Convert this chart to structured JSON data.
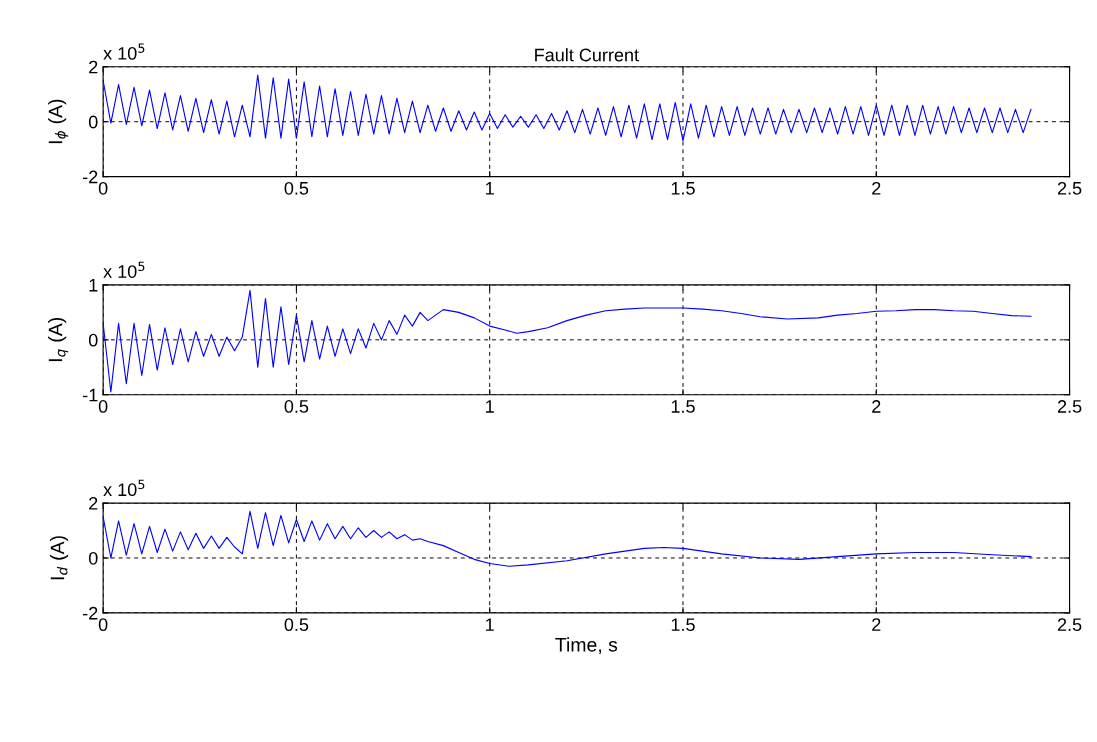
{
  "chart_data": [
    {
      "type": "line",
      "title": "Fault Current",
      "ylabel": "I$_{ϕ}$ (A)",
      "annotations": [
        "x 10$^{5}$"
      ],
      "xlim": [
        0,
        2.5
      ],
      "xticks": [
        0,
        0.5,
        1,
        1.5,
        2,
        2.5
      ],
      "ylim": [
        -2,
        2
      ],
      "yticks": [
        -2,
        0,
        2
      ],
      "grid": true,
      "x": [
        0,
        0.02,
        0.04,
        0.06,
        0.08,
        0.1,
        0.12,
        0.14,
        0.16,
        0.18,
        0.2,
        0.22,
        0.24,
        0.26,
        0.28,
        0.3,
        0.32,
        0.34,
        0.36,
        0.38,
        0.4,
        0.42,
        0.44,
        0.46,
        0.48,
        0.5,
        0.52,
        0.54,
        0.56,
        0.58,
        0.6,
        0.62,
        0.64,
        0.66,
        0.68,
        0.7,
        0.72,
        0.74,
        0.76,
        0.78,
        0.8,
        0.82,
        0.84,
        0.86,
        0.88,
        0.9,
        0.92,
        0.94,
        0.96,
        0.98,
        1.0,
        1.02,
        1.04,
        1.06,
        1.08,
        1.1,
        1.12,
        1.14,
        1.16,
        1.18,
        1.2,
        1.22,
        1.24,
        1.26,
        1.28,
        1.3,
        1.32,
        1.34,
        1.36,
        1.38,
        1.4,
        1.42,
        1.44,
        1.46,
        1.48,
        1.5,
        1.52,
        1.54,
        1.56,
        1.58,
        1.6,
        1.62,
        1.64,
        1.66,
        1.68,
        1.7,
        1.72,
        1.74,
        1.76,
        1.78,
        1.8,
        1.82,
        1.84,
        1.86,
        1.88,
        1.9,
        1.92,
        1.94,
        1.96,
        1.98,
        2.0,
        2.02,
        2.04,
        2.06,
        2.08,
        2.1,
        2.12,
        2.14,
        2.16,
        2.18,
        2.2,
        2.22,
        2.24,
        2.26,
        2.28,
        2.3,
        2.32,
        2.34,
        2.36,
        2.38,
        2.4
      ],
      "series": [
        {
          "color": "#0000ff",
          "values": [
            1.5,
            -0.05,
            1.35,
            -0.1,
            1.25,
            -0.15,
            1.15,
            -0.25,
            1.05,
            -0.3,
            0.95,
            -0.35,
            0.85,
            -0.4,
            0.8,
            -0.45,
            0.75,
            -0.55,
            0.6,
            -0.55,
            1.7,
            -0.6,
            1.6,
            -0.6,
            1.55,
            -0.6,
            1.45,
            -0.55,
            1.3,
            -0.55,
            1.2,
            -0.5,
            1.1,
            -0.5,
            1.0,
            -0.45,
            0.95,
            -0.45,
            0.85,
            -0.4,
            0.75,
            -0.4,
            0.6,
            -0.35,
            0.5,
            -0.35,
            0.4,
            -0.3,
            0.35,
            -0.3,
            0.3,
            -0.25,
            0.25,
            -0.2,
            0.2,
            -0.2,
            0.25,
            -0.25,
            0.3,
            -0.3,
            0.4,
            -0.4,
            0.45,
            -0.45,
            0.5,
            -0.5,
            0.55,
            -0.55,
            0.6,
            -0.6,
            0.65,
            -0.65,
            0.65,
            -0.65,
            0.7,
            -0.7,
            0.65,
            -0.6,
            0.6,
            -0.55,
            0.55,
            -0.5,
            0.55,
            -0.5,
            0.5,
            -0.45,
            0.5,
            -0.45,
            0.45,
            -0.4,
            0.45,
            -0.4,
            0.5,
            -0.4,
            0.5,
            -0.45,
            0.55,
            -0.45,
            0.55,
            -0.5,
            0.6,
            -0.5,
            0.6,
            -0.5,
            0.6,
            -0.5,
            0.6,
            -0.45,
            0.55,
            -0.45,
            0.55,
            -0.4,
            0.5,
            -0.4,
            0.5,
            -0.4,
            0.5,
            -0.4,
            0.45,
            -0.4,
            0.45
          ]
        }
      ]
    },
    {
      "type": "line",
      "ylabel": "I$_{q}$ (A)",
      "annotations": [
        "x 10$^{5}$"
      ],
      "xlim": [
        0,
        2.5
      ],
      "xticks": [
        0,
        0.5,
        1,
        1.5,
        2,
        2.5
      ],
      "ylim": [
        -1,
        1
      ],
      "yticks": [
        -1,
        0,
        1
      ],
      "grid": true,
      "x": [
        0,
        0.02,
        0.04,
        0.06,
        0.08,
        0.1,
        0.12,
        0.14,
        0.16,
        0.18,
        0.2,
        0.22,
        0.24,
        0.26,
        0.28,
        0.3,
        0.32,
        0.34,
        0.36,
        0.38,
        0.4,
        0.42,
        0.44,
        0.46,
        0.48,
        0.5,
        0.52,
        0.54,
        0.56,
        0.58,
        0.6,
        0.62,
        0.64,
        0.66,
        0.68,
        0.7,
        0.72,
        0.74,
        0.76,
        0.78,
        0.8,
        0.82,
        0.84,
        0.88,
        0.92,
        0.96,
        1.0,
        1.04,
        1.07,
        1.1,
        1.15,
        1.2,
        1.25,
        1.3,
        1.35,
        1.4,
        1.45,
        1.5,
        1.55,
        1.6,
        1.65,
        1.7,
        1.77,
        1.85,
        1.9,
        1.95,
        2.0,
        2.05,
        2.1,
        2.15,
        2.2,
        2.25,
        2.3,
        2.35,
        2.4
      ],
      "series": [
        {
          "color": "#0000ff",
          "values": [
            0.3,
            -0.95,
            0.3,
            -0.8,
            0.3,
            -0.65,
            0.28,
            -0.55,
            0.22,
            -0.45,
            0.2,
            -0.4,
            0.15,
            -0.3,
            0.1,
            -0.3,
            0.05,
            -0.2,
            0.05,
            0.9,
            -0.5,
            0.75,
            -0.5,
            0.6,
            -0.45,
            0.45,
            -0.4,
            0.35,
            -0.35,
            0.25,
            -0.3,
            0.2,
            -0.25,
            0.2,
            -0.15,
            0.3,
            0.0,
            0.35,
            0.1,
            0.45,
            0.25,
            0.5,
            0.35,
            0.55,
            0.5,
            0.4,
            0.25,
            0.18,
            0.12,
            0.15,
            0.22,
            0.35,
            0.45,
            0.53,
            0.56,
            0.58,
            0.58,
            0.58,
            0.56,
            0.53,
            0.48,
            0.42,
            0.38,
            0.4,
            0.45,
            0.48,
            0.52,
            0.53,
            0.55,
            0.55,
            0.53,
            0.52,
            0.48,
            0.44,
            0.43
          ]
        }
      ]
    },
    {
      "type": "line",
      "ylabel": "I$_{d}$ (A)",
      "xlabel": "Time, s",
      "annotations": [
        "x 10$^{5}$"
      ],
      "xlim": [
        0,
        2.5
      ],
      "xticks": [
        0,
        0.5,
        1,
        1.5,
        2,
        2.5
      ],
      "ylim": [
        -2,
        2
      ],
      "yticks": [
        -2,
        0,
        2
      ],
      "grid": true,
      "x": [
        0,
        0.02,
        0.04,
        0.06,
        0.08,
        0.1,
        0.12,
        0.14,
        0.16,
        0.18,
        0.2,
        0.22,
        0.24,
        0.26,
        0.28,
        0.3,
        0.32,
        0.34,
        0.36,
        0.38,
        0.4,
        0.42,
        0.44,
        0.46,
        0.48,
        0.5,
        0.52,
        0.54,
        0.56,
        0.58,
        0.6,
        0.62,
        0.64,
        0.66,
        0.68,
        0.7,
        0.72,
        0.74,
        0.76,
        0.78,
        0.8,
        0.82,
        0.84,
        0.88,
        0.92,
        0.96,
        1.0,
        1.05,
        1.1,
        1.2,
        1.3,
        1.4,
        1.45,
        1.5,
        1.6,
        1.7,
        1.8,
        1.9,
        2.0,
        2.1,
        2.2,
        2.3,
        2.4
      ],
      "series": [
        {
          "color": "#0000ff",
          "values": [
            1.5,
            0.0,
            1.35,
            0.1,
            1.25,
            0.15,
            1.15,
            0.2,
            1.05,
            0.25,
            0.95,
            0.3,
            0.9,
            0.35,
            0.8,
            0.35,
            0.75,
            0.4,
            0.15,
            1.7,
            0.35,
            1.65,
            0.45,
            1.55,
            0.55,
            1.4,
            0.6,
            1.35,
            0.65,
            1.25,
            0.7,
            1.15,
            0.7,
            1.1,
            0.75,
            1.0,
            0.75,
            0.95,
            0.7,
            0.85,
            0.65,
            0.7,
            0.6,
            0.45,
            0.2,
            -0.05,
            -0.2,
            -0.3,
            -0.25,
            -0.1,
            0.15,
            0.35,
            0.38,
            0.35,
            0.15,
            0.0,
            -0.05,
            0.05,
            0.15,
            0.2,
            0.2,
            0.12,
            0.05
          ]
        }
      ]
    }
  ]
}
